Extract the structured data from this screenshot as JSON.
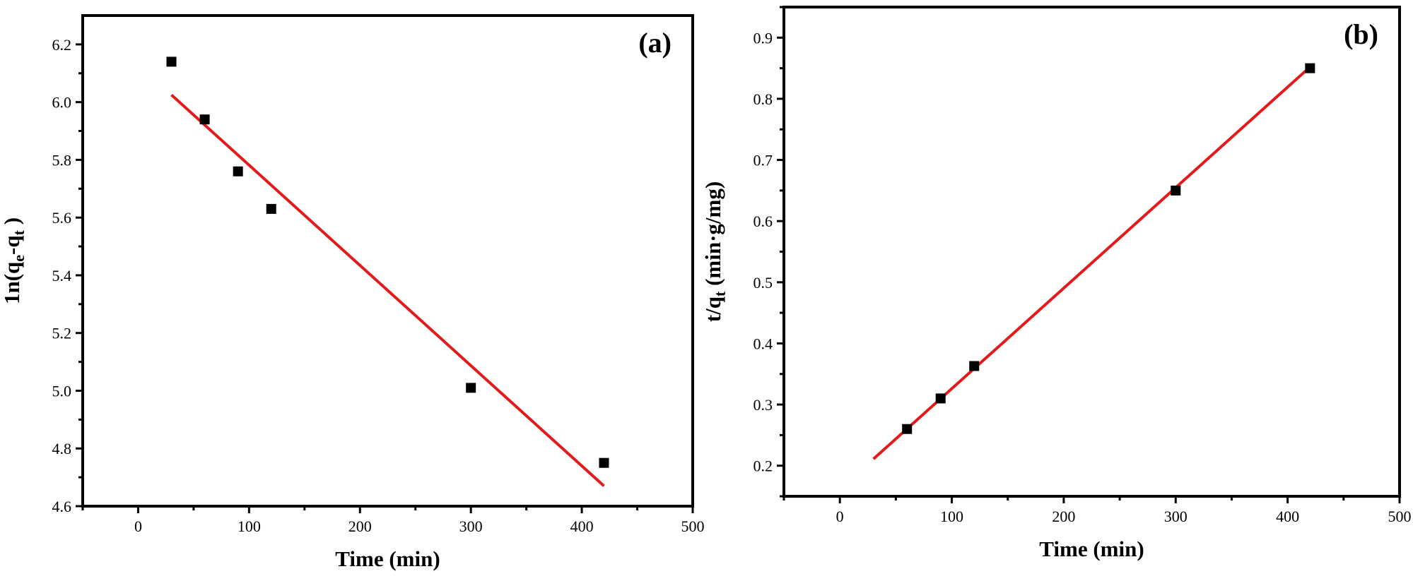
{
  "chart_data": [
    {
      "type": "scatter",
      "panel_label": "(a)",
      "xlabel": "Time (min)",
      "ylabel": {
        "base": "1n(q",
        "sub1": "e",
        "mid": "-q",
        "sub2": "t",
        "end": " )"
      },
      "xlim": [
        -50,
        500
      ],
      "ylim": [
        4.6,
        6.3
      ],
      "xticks": [
        0,
        100,
        200,
        300,
        400,
        500
      ],
      "yticks": [
        4.6,
        4.8,
        5.0,
        5.2,
        5.4,
        5.6,
        5.8,
        6.0,
        6.2
      ],
      "xtick_labels": [
        "0",
        "100",
        "200",
        "300",
        "400",
        "500"
      ],
      "ytick_labels": [
        "4.6",
        "4.8",
        "5.0",
        "5.2",
        "5.4",
        "5.6",
        "5.8",
        "6.0",
        "6.2"
      ],
      "points": {
        "x": [
          30,
          60,
          90,
          120,
          300,
          420
        ],
        "y": [
          6.14,
          5.94,
          5.76,
          5.63,
          5.01,
          4.75
        ]
      },
      "fit_line": {
        "x": [
          30,
          420
        ],
        "y": [
          6.025,
          4.67
        ],
        "color": "#e31a1c"
      },
      "marker_color": "#000000"
    },
    {
      "type": "scatter",
      "panel_label": "(b)",
      "xlabel": "Time (min)",
      "ylabel": {
        "base": "t/q",
        "sub1": "t",
        "mid": " (min·g/mg)",
        "sub2": "",
        "end": ""
      },
      "xlim": [
        -50,
        500
      ],
      "ylim": [
        0.15,
        0.95
      ],
      "xticks": [
        0,
        100,
        200,
        300,
        400,
        500
      ],
      "yticks": [
        0.2,
        0.3,
        0.4,
        0.5,
        0.6,
        0.7,
        0.8,
        0.9
      ],
      "xtick_labels": [
        "0",
        "100",
        "200",
        "300",
        "400",
        "500"
      ],
      "ytick_labels": [
        "0.2",
        "0.3",
        "0.4",
        "0.5",
        "0.6",
        "0.7",
        "0.8",
        "0.9"
      ],
      "points": {
        "x": [
          60,
          90,
          120,
          300,
          420
        ],
        "y": [
          0.26,
          0.31,
          0.363,
          0.65,
          0.85
        ]
      },
      "fit_line": {
        "x": [
          30,
          420
        ],
        "y": [
          0.211,
          0.852
        ],
        "color": "#e31a1c"
      },
      "marker_color": "#000000"
    }
  ]
}
